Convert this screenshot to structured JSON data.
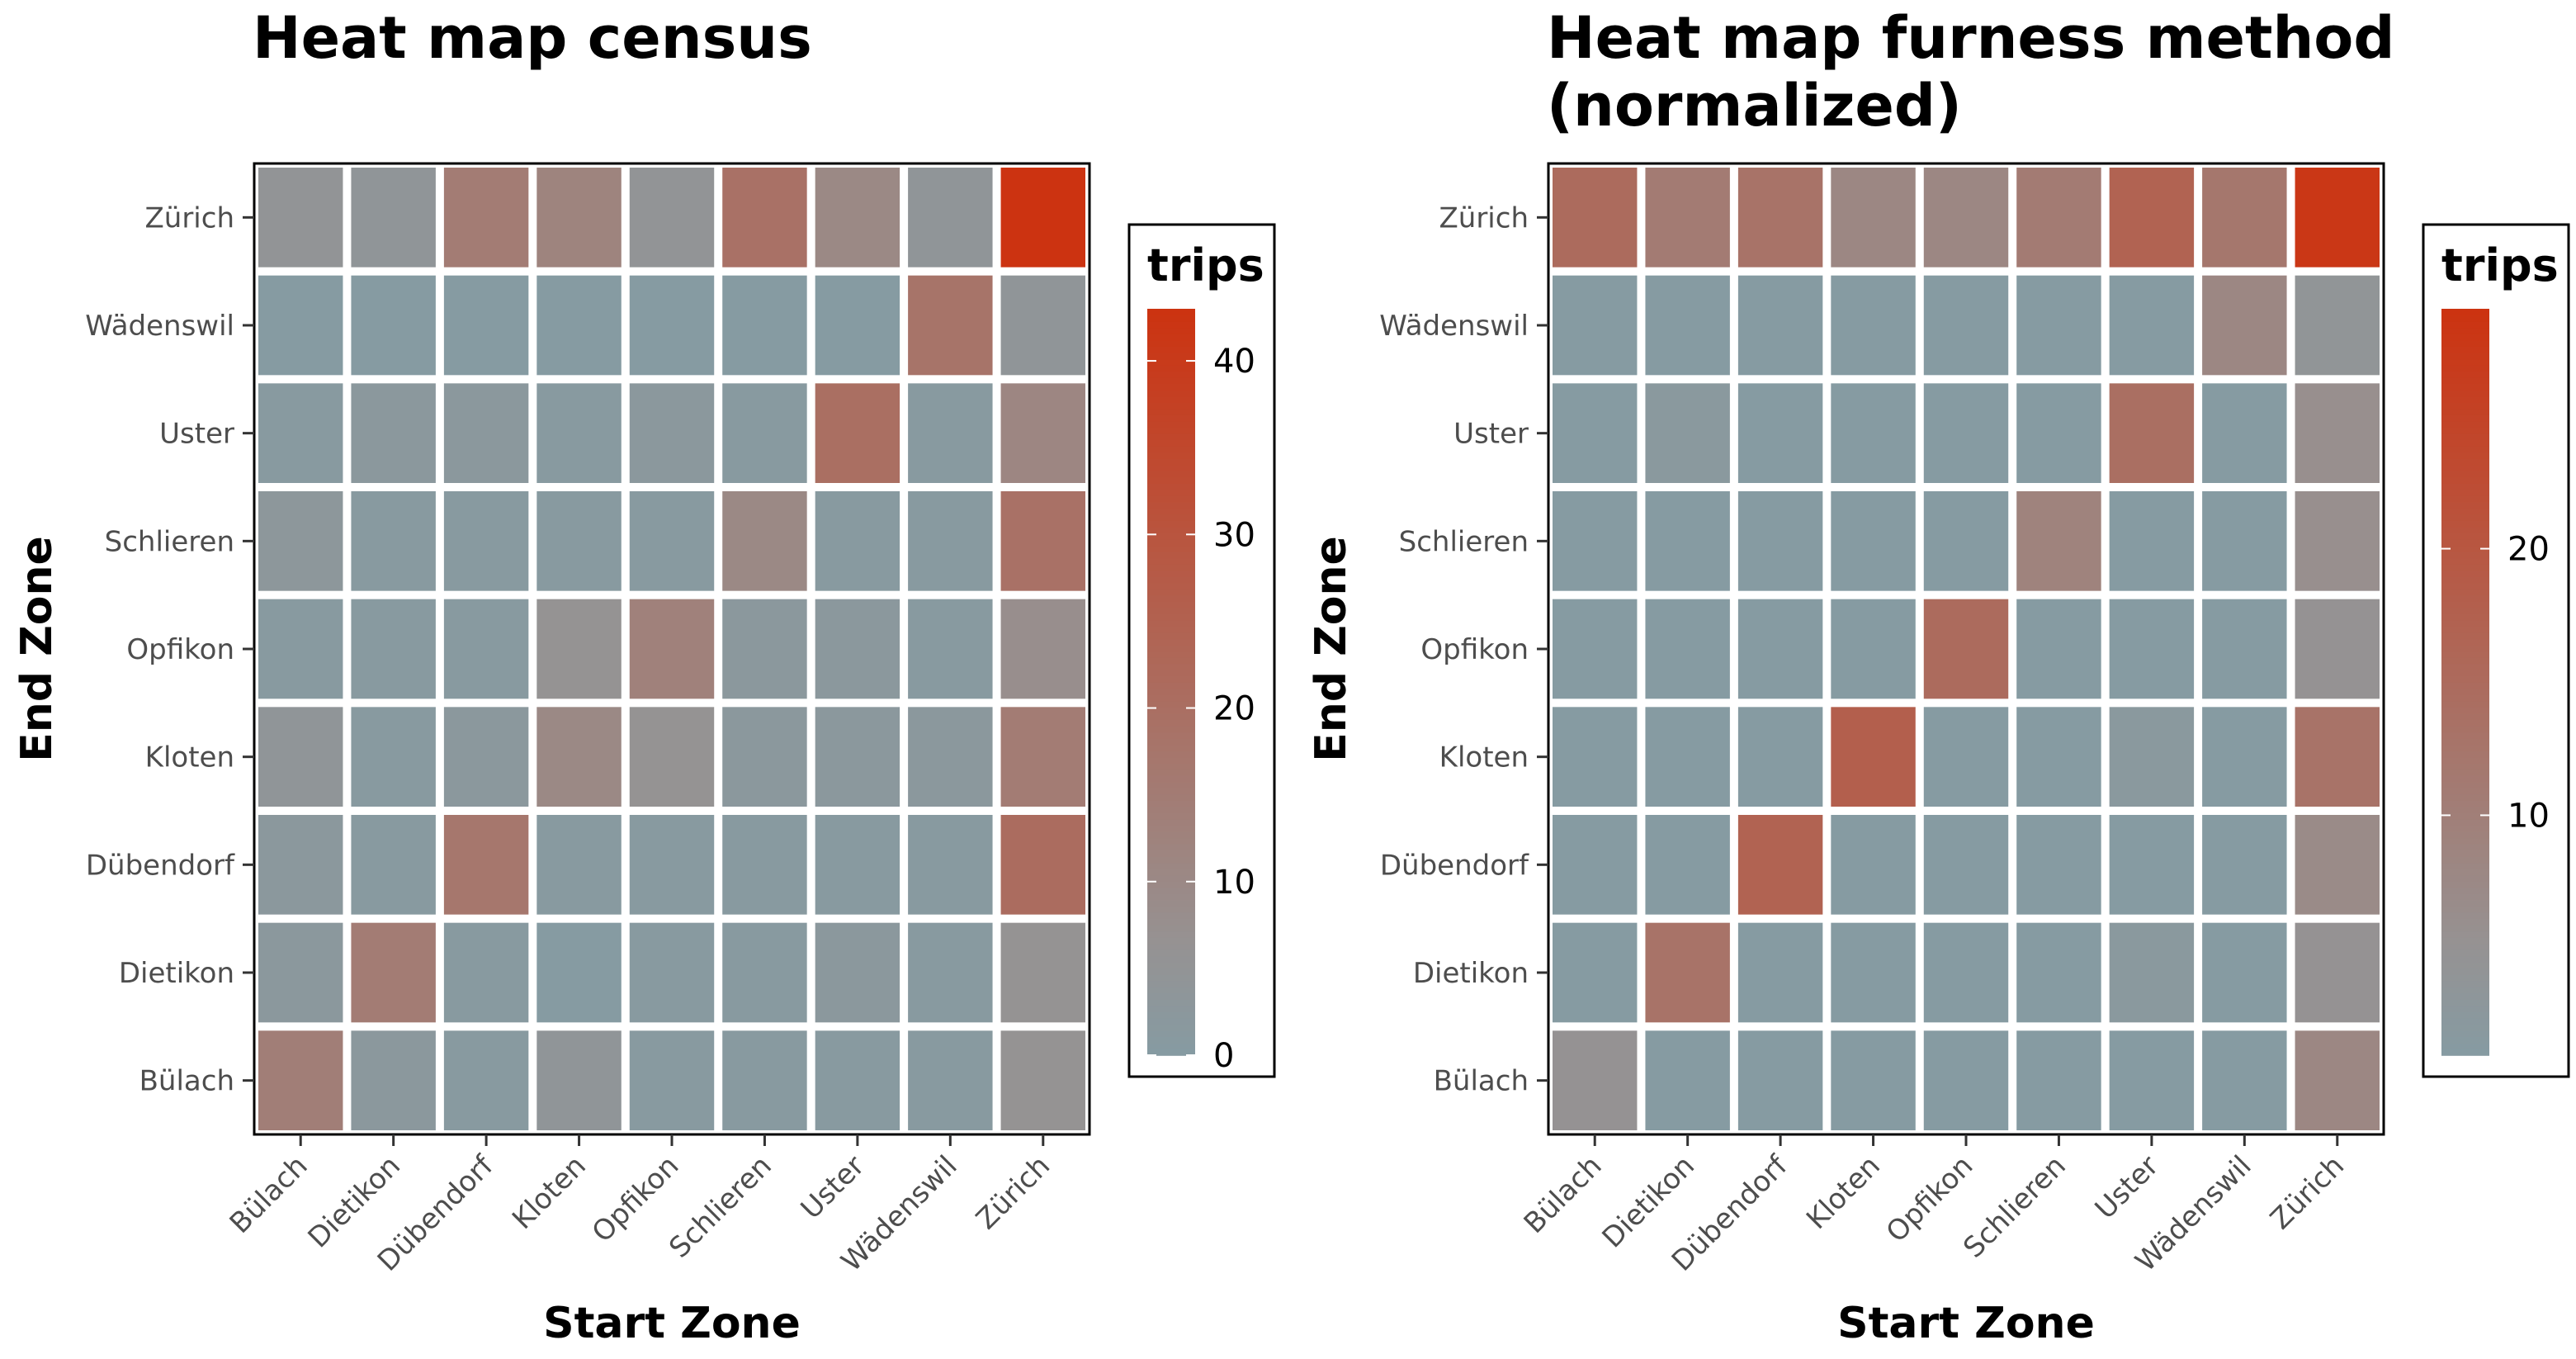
{
  "chart_data": [
    {
      "type": "heatmap",
      "title_lines": [
        "Heat map census"
      ],
      "xlabel": "Start Zone",
      "ylabel": "End Zone",
      "x_categories": [
        "Bülach",
        "Dietikon",
        "Dübendorf",
        "Kloten",
        "Opfikon",
        "Schlieren",
        "Uster",
        "Wädenswil",
        "Zürich"
      ],
      "y_categories": [
        "Bülach",
        "Dietikon",
        "Dübendorf",
        "Kloten",
        "Opfikon",
        "Schlieren",
        "Uster",
        "Wädenswil",
        "Zürich"
      ],
      "values": [
        [
          14,
          2,
          1,
          4,
          1,
          1,
          1,
          1,
          6
        ],
        [
          2,
          15,
          1,
          0,
          1,
          1,
          2,
          1,
          6
        ],
        [
          2,
          1,
          17,
          1,
          1,
          1,
          1,
          1,
          21
        ],
        [
          4,
          1,
          2,
          10,
          6,
          2,
          2,
          2,
          15
        ],
        [
          1,
          1,
          1,
          6,
          13,
          2,
          2,
          1,
          8
        ],
        [
          3,
          1,
          1,
          1,
          1,
          10,
          1,
          1,
          19
        ],
        [
          1,
          2,
          2,
          1,
          2,
          1,
          20,
          1,
          11
        ],
        [
          0,
          0,
          0,
          0,
          0,
          0,
          0,
          18,
          4
        ],
        [
          5,
          4,
          15,
          12,
          5,
          19,
          10,
          4,
          43
        ]
      ],
      "legend_title": "trips",
      "legend_ticks": [
        0,
        10,
        20,
        30,
        40
      ],
      "scale_min": 0,
      "scale_max": 43,
      "color_low": "#869ba2",
      "color_mid": "#969292",
      "color_high": "#cc3311"
    },
    {
      "type": "heatmap",
      "title_lines": [
        "Heat map furness method",
        "(normalized)"
      ],
      "xlabel": "Start Zone",
      "ylabel": "End Zone",
      "x_categories": [
        "Bülach",
        "Dietikon",
        "Dübendorf",
        "Kloten",
        "Opfikon",
        "Schlieren",
        "Uster",
        "Wädenswil",
        "Zürich"
      ],
      "y_categories": [
        "Bülach",
        "Dietikon",
        "Dübendorf",
        "Kloten",
        "Opfikon",
        "Schlieren",
        "Uster",
        "Wädenswil",
        "Zürich"
      ],
      "values": [
        [
          5,
          1,
          1,
          1,
          1,
          1,
          1,
          1,
          8
        ],
        [
          1,
          13,
          1,
          1,
          1,
          1,
          2,
          1,
          5
        ],
        [
          1,
          1,
          17,
          1,
          1,
          1,
          1,
          1,
          7
        ],
        [
          1,
          1,
          1,
          18,
          1,
          1,
          2,
          1,
          13
        ],
        [
          1,
          1,
          1,
          1,
          15,
          1,
          1,
          1,
          5
        ],
        [
          1,
          1,
          1,
          1,
          1,
          9,
          1,
          1,
          6
        ],
        [
          1,
          2,
          1,
          1,
          1,
          1,
          14,
          1,
          6
        ],
        [
          1,
          1,
          1,
          1,
          1,
          1,
          1,
          8,
          4
        ],
        [
          15,
          11,
          13,
          8,
          8,
          11,
          17,
          12,
          28
        ]
      ],
      "legend_title": "trips",
      "legend_ticks": [
        10,
        20
      ],
      "scale_min": 1,
      "scale_max": 29,
      "color_low": "#869ba2",
      "color_mid": "#969292",
      "color_high": "#cc3311"
    }
  ]
}
